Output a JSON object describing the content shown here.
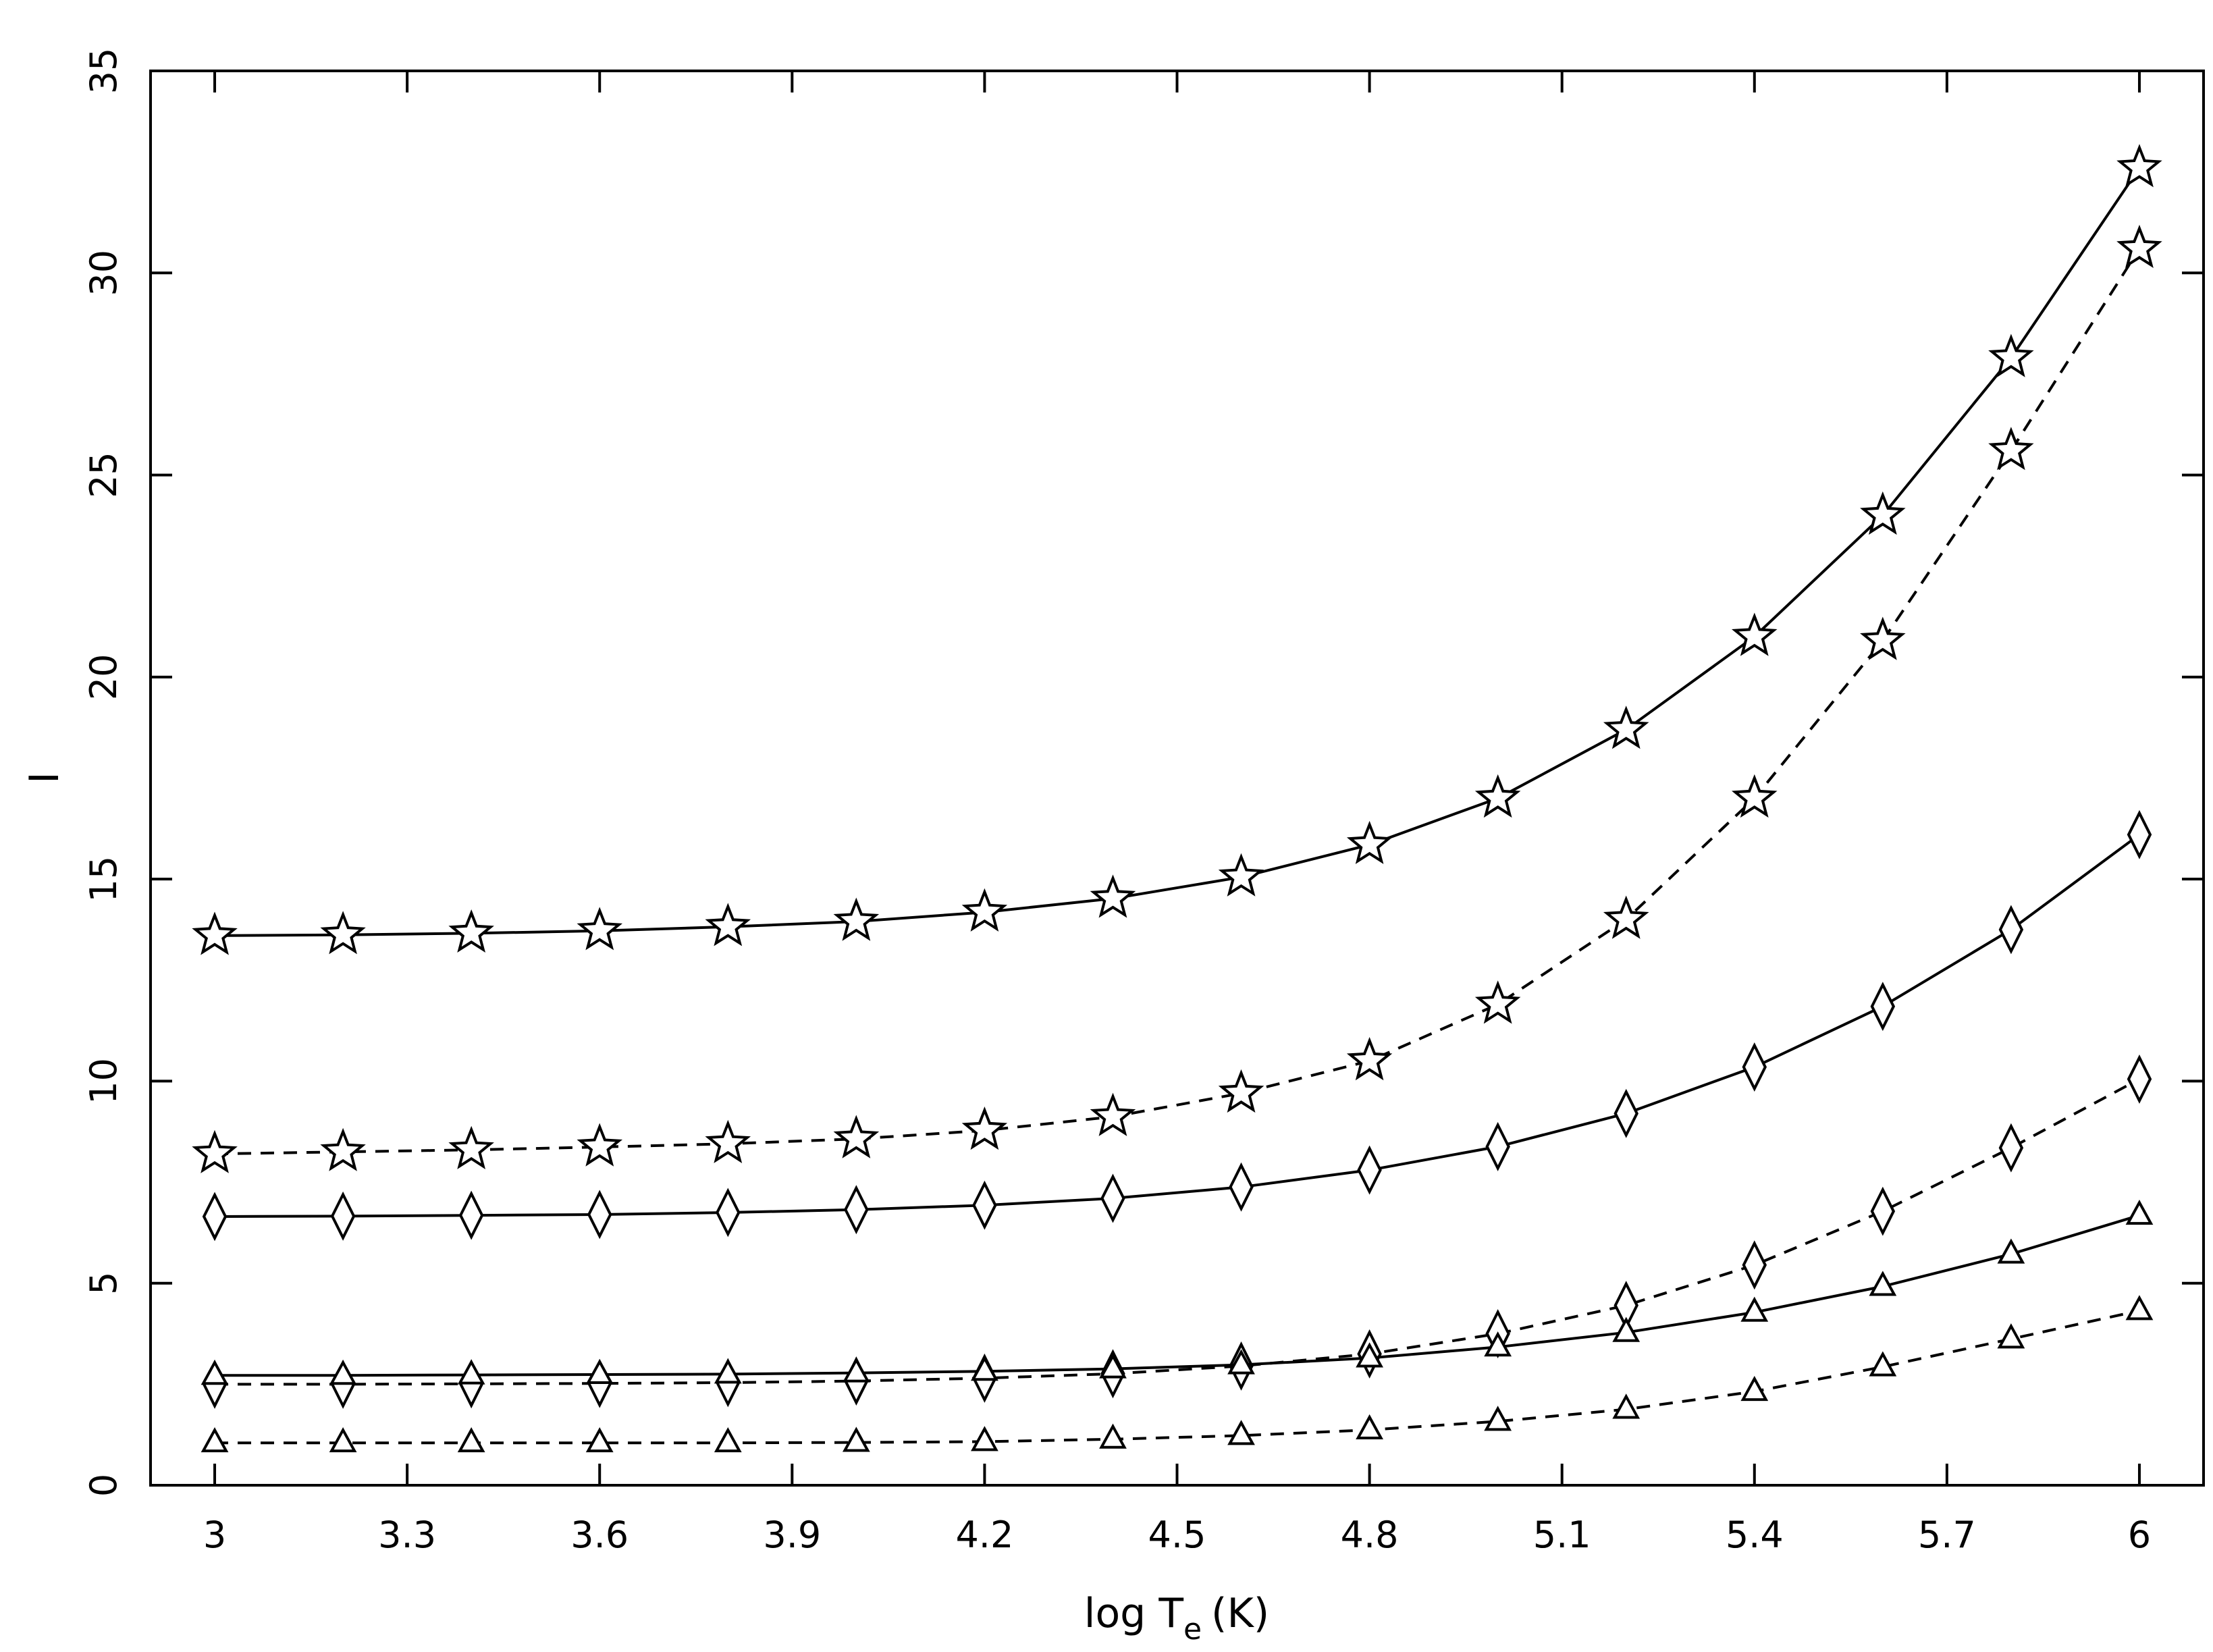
{
  "chart_data": {
    "type": "line",
    "title": "",
    "xlabel": "log T",
    "xlabel_subscript": "e",
    "xlabel_unit": "(K)",
    "ylabel": "I",
    "xlim": [
      2.9,
      6.1
    ],
    "ylim": [
      0,
      35
    ],
    "xticks": [
      "3",
      "3.3",
      "3.6",
      "3.9",
      "4.2",
      "4.5",
      "4.8",
      "5.1",
      "5.4",
      "5.7",
      "6"
    ],
    "xtick_values": [
      3,
      3.3,
      3.6,
      3.9,
      4.2,
      4.5,
      4.8,
      5.1,
      5.4,
      5.7,
      6
    ],
    "yticks": [
      "0",
      "5",
      "10",
      "15",
      "20",
      "25",
      "30",
      "35"
    ],
    "ytick_values": [
      0,
      5,
      10,
      15,
      20,
      25,
      30,
      35
    ],
    "grid": false,
    "x": [
      3.0,
      3.2,
      3.4,
      3.6,
      3.8,
      4.0,
      4.2,
      4.4,
      4.6,
      4.8,
      5.0,
      5.2,
      5.4,
      5.6,
      5.8,
      6.0
    ],
    "series": [
      {
        "marker": "star",
        "linestyle": "solid",
        "values": [
          13.6,
          13.62,
          13.66,
          13.72,
          13.82,
          13.95,
          14.18,
          14.52,
          15.05,
          15.85,
          17.0,
          18.7,
          21.0,
          24.0,
          27.9,
          32.6
        ]
      },
      {
        "marker": "star",
        "linestyle": "dashed",
        "values": [
          8.2,
          8.25,
          8.3,
          8.37,
          8.45,
          8.57,
          8.78,
          9.12,
          9.7,
          10.5,
          11.9,
          14.0,
          17.0,
          20.9,
          25.6,
          30.6
        ]
      },
      {
        "marker": "diamond",
        "linestyle": "solid",
        "values": [
          6.65,
          6.66,
          6.68,
          6.7,
          6.75,
          6.82,
          6.93,
          7.1,
          7.38,
          7.8,
          8.38,
          9.2,
          10.35,
          11.85,
          13.75,
          16.1
        ]
      },
      {
        "marker": "diamond",
        "linestyle": "dashed",
        "values": [
          2.5,
          2.5,
          2.51,
          2.52,
          2.54,
          2.58,
          2.65,
          2.76,
          2.95,
          3.25,
          3.75,
          4.45,
          5.45,
          6.78,
          8.35,
          10.05
        ]
      },
      {
        "marker": "triangle",
        "linestyle": "solid",
        "values": [
          2.72,
          2.72,
          2.73,
          2.74,
          2.75,
          2.78,
          2.82,
          2.88,
          2.98,
          3.15,
          3.42,
          3.78,
          4.28,
          4.92,
          5.72,
          6.68
        ]
      },
      {
        "marker": "triangle",
        "linestyle": "dashed",
        "values": [
          1.05,
          1.05,
          1.05,
          1.05,
          1.05,
          1.06,
          1.08,
          1.14,
          1.23,
          1.37,
          1.58,
          1.88,
          2.32,
          2.93,
          3.62,
          4.32
        ]
      }
    ]
  }
}
